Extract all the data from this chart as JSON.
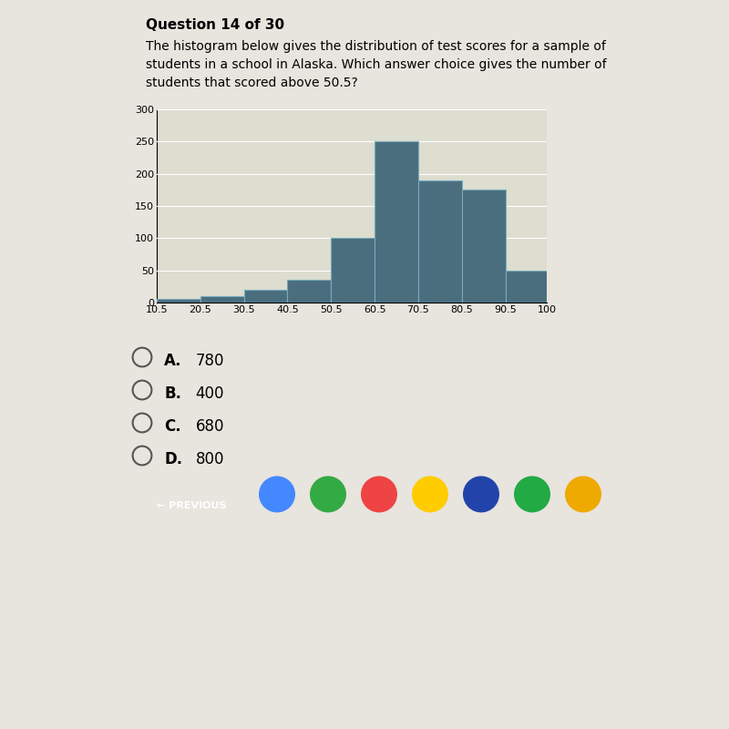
{
  "question_header": "Question 14 of 30",
  "question_text_line1": "The histogram below gives the distribution of test scores for a sample of",
  "question_text_line2": "students in a school in Alaska. Which answer choice gives the number of",
  "question_text_line3": "students that scored above 50.5?",
  "bin_edges": [
    10.5,
    20.5,
    30.5,
    40.5,
    50.5,
    60.5,
    70.5,
    80.5,
    90.5,
    100
  ],
  "bar_heights": [
    5,
    10,
    20,
    35,
    100,
    250,
    190,
    175,
    50
  ],
  "bar_color": "#4a6e7e",
  "bar_edge_color": "#7aaabb",
  "ylim": [
    0,
    300
  ],
  "yticks": [
    0,
    50,
    100,
    150,
    200,
    250,
    300
  ],
  "xtick_labels": [
    "10.5",
    "20.5",
    "30.5",
    "40.5",
    "50.5",
    "60.5",
    "70.5",
    "80.5",
    "90.5",
    "100"
  ],
  "answer_choices": [
    "A.  780",
    "B.  400",
    "C.  680",
    "D.  800"
  ],
  "answer_bold": [
    "A.",
    "B.",
    "C.",
    "D."
  ],
  "answer_values": [
    "780",
    "400",
    "680",
    "800"
  ],
  "bg_color": "#e8e4de",
  "plot_bg_color": "#ddddd0",
  "taskbar_color": "#3a3a3a",
  "dark_bg_color": "#1a1a1a",
  "btn_color": "#5577aa",
  "separator_color": "#bbbbbb",
  "header_fontsize": 11,
  "question_fontsize": 10,
  "tick_fontsize": 8,
  "answer_fontsize": 12
}
